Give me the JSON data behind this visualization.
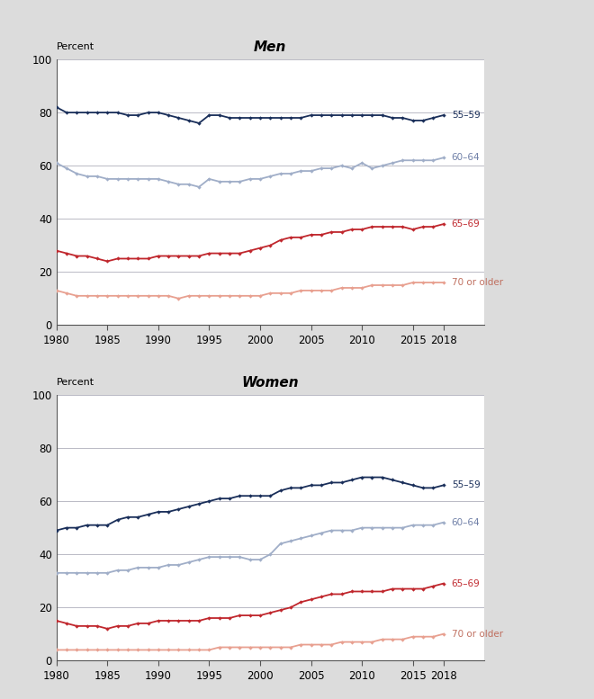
{
  "years": [
    1980,
    1981,
    1982,
    1983,
    1984,
    1985,
    1986,
    1987,
    1988,
    1989,
    1990,
    1991,
    1992,
    1993,
    1994,
    1995,
    1996,
    1997,
    1998,
    1999,
    2000,
    2001,
    2002,
    2003,
    2004,
    2005,
    2006,
    2007,
    2008,
    2009,
    2010,
    2011,
    2012,
    2013,
    2014,
    2015,
    2016,
    2017,
    2018
  ],
  "men": {
    "55_59": [
      82,
      80,
      80,
      80,
      80,
      80,
      80,
      79,
      79,
      80,
      80,
      79,
      78,
      77,
      76,
      79,
      79,
      78,
      78,
      78,
      78,
      78,
      78,
      78,
      78,
      79,
      79,
      79,
      79,
      79,
      79,
      79,
      79,
      78,
      78,
      77,
      77,
      78,
      79
    ],
    "60_64": [
      61,
      59,
      57,
      56,
      56,
      55,
      55,
      55,
      55,
      55,
      55,
      54,
      53,
      53,
      52,
      55,
      54,
      54,
      54,
      55,
      55,
      56,
      57,
      57,
      58,
      58,
      59,
      59,
      60,
      59,
      61,
      59,
      60,
      61,
      62,
      62,
      62,
      62,
      63
    ],
    "65_69": [
      28,
      27,
      26,
      26,
      25,
      24,
      25,
      25,
      25,
      25,
      26,
      26,
      26,
      26,
      26,
      27,
      27,
      27,
      27,
      28,
      29,
      30,
      32,
      33,
      33,
      34,
      34,
      35,
      35,
      36,
      36,
      37,
      37,
      37,
      37,
      36,
      37,
      37,
      38
    ],
    "70plus": [
      13,
      12,
      11,
      11,
      11,
      11,
      11,
      11,
      11,
      11,
      11,
      11,
      10,
      11,
      11,
      11,
      11,
      11,
      11,
      11,
      11,
      12,
      12,
      12,
      13,
      13,
      13,
      13,
      14,
      14,
      14,
      15,
      15,
      15,
      15,
      16,
      16,
      16,
      16
    ]
  },
  "women": {
    "55_59": [
      49,
      50,
      50,
      51,
      51,
      51,
      53,
      54,
      54,
      55,
      56,
      56,
      57,
      58,
      59,
      60,
      61,
      61,
      62,
      62,
      62,
      62,
      64,
      65,
      65,
      66,
      66,
      67,
      67,
      68,
      69,
      69,
      69,
      68,
      67,
      66,
      65,
      65,
      66
    ],
    "60_64": [
      33,
      33,
      33,
      33,
      33,
      33,
      34,
      34,
      35,
      35,
      35,
      36,
      36,
      37,
      38,
      39,
      39,
      39,
      39,
      38,
      38,
      40,
      44,
      45,
      46,
      47,
      48,
      49,
      49,
      49,
      50,
      50,
      50,
      50,
      50,
      51,
      51,
      51,
      52
    ],
    "65_69": [
      15,
      14,
      13,
      13,
      13,
      12,
      13,
      13,
      14,
      14,
      15,
      15,
      15,
      15,
      15,
      16,
      16,
      16,
      17,
      17,
      17,
      18,
      19,
      20,
      22,
      23,
      24,
      25,
      25,
      26,
      26,
      26,
      26,
      27,
      27,
      27,
      27,
      28,
      29
    ],
    "70plus": [
      4,
      4,
      4,
      4,
      4,
      4,
      4,
      4,
      4,
      4,
      4,
      4,
      4,
      4,
      4,
      4,
      5,
      5,
      5,
      5,
      5,
      5,
      5,
      5,
      6,
      6,
      6,
      6,
      7,
      7,
      7,
      7,
      8,
      8,
      8,
      9,
      9,
      9,
      10
    ]
  },
  "colors": {
    "55_59": "#1a2f5a",
    "60_64": "#a0aec8",
    "65_69": "#c0272d",
    "70plus": "#e8a090"
  },
  "labels": {
    "55_59": "55–59",
    "60_64": "60–64",
    "65_69": "65–69",
    "70plus": "70 or older"
  },
  "label_colors": {
    "55_59": "#1a2f5a",
    "60_64": "#7080a8",
    "65_69": "#c0272d",
    "70plus": "#c07060"
  },
  "background_color": "#dcdcdc",
  "plot_bg": "#ffffff",
  "grid_color": "#b0b0bb",
  "fig_width": 6.6,
  "fig_height": 7.77,
  "dpi": 100
}
